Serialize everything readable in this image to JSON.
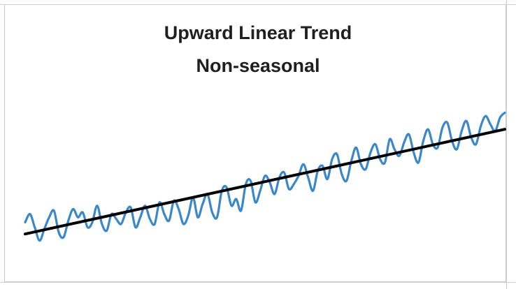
{
  "chart_data": {
    "type": "line",
    "title": "Upward Linear Trend",
    "subtitle": "Non-seasonal",
    "xlabel": "",
    "ylabel": "",
    "grid": false,
    "legend": "none",
    "x_range": [
      0,
      100
    ],
    "y_range": [
      0,
      100
    ],
    "series": [
      {
        "kind": "data",
        "color": "#3a87c9",
        "x": [
          0,
          1,
          2,
          3,
          4,
          5,
          6,
          7,
          8,
          9,
          10,
          11,
          12,
          13,
          14,
          15,
          16,
          17,
          18,
          19,
          20,
          21,
          22,
          23,
          24,
          25,
          26,
          27,
          28,
          29,
          30,
          31,
          32,
          33,
          34,
          35,
          36,
          37,
          38,
          39,
          40,
          41,
          42,
          43,
          44,
          45,
          46,
          47,
          48,
          49,
          50,
          51,
          52,
          53,
          54,
          55,
          56,
          57,
          58,
          59,
          60,
          61,
          62,
          63,
          64,
          65,
          66,
          67,
          68,
          69,
          70,
          71,
          72,
          73,
          74,
          75,
          76,
          77,
          78,
          79,
          80,
          81,
          82,
          83,
          84,
          85,
          86,
          87,
          88,
          89,
          90,
          91,
          92,
          93,
          94,
          95,
          96,
          97,
          98,
          99,
          100
        ],
        "values": [
          25,
          30,
          22,
          14,
          21,
          28,
          32,
          19,
          16,
          26,
          33,
          28,
          31,
          22,
          25,
          35,
          24,
          20,
          30,
          27,
          24,
          31,
          34,
          22,
          28,
          35,
          27,
          24,
          37,
          30,
          26,
          38,
          33,
          24,
          29,
          40,
          28,
          36,
          42,
          31,
          28,
          44,
          46,
          35,
          39,
          32,
          48,
          50,
          37,
          44,
          53,
          49,
          42,
          52,
          55,
          45,
          48,
          53,
          60,
          52,
          44,
          56,
          59,
          51,
          63,
          66,
          54,
          50,
          62,
          70,
          60,
          57,
          67,
          72,
          63,
          61,
          75,
          69,
          65,
          73,
          78,
          67,
          61,
          74,
          81,
          72,
          70,
          82,
          85,
          74,
          69,
          80,
          86,
          76,
          72,
          83,
          89,
          84,
          80,
          88,
          91
        ]
      },
      {
        "kind": "trend",
        "color": "#000000",
        "x": [
          0,
          100
        ],
        "values": [
          18,
          81
        ]
      }
    ]
  }
}
